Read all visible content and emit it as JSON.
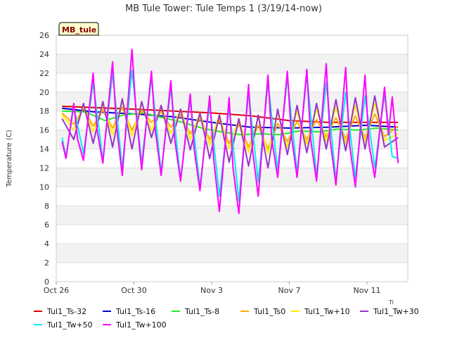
{
  "chart_data": {
    "type": "line",
    "title": "MB Tule Tower: Tule Temps 1 (3/19/14-now)",
    "ylabel": "Temperature (C)",
    "xlabel": "",
    "badge": "MB_tule",
    "corner_mark": "Ti",
    "ylim": [
      0,
      26
    ],
    "yticks": [
      0,
      2,
      4,
      6,
      8,
      10,
      12,
      14,
      16,
      18,
      20,
      22,
      24,
      26
    ],
    "xlim": [
      0,
      18.1
    ],
    "xticks": [
      {
        "value": 0,
        "label": "Oct 26"
      },
      {
        "value": 4,
        "label": "Oct 30"
      },
      {
        "value": 8,
        "label": "Nov 3"
      },
      {
        "value": 12,
        "label": "Nov 7"
      },
      {
        "value": 16,
        "label": "Nov 11"
      }
    ],
    "grid": true,
    "legend_position": "bottom",
    "series": [
      {
        "name": "Tul1_Ts-32",
        "color": "#dd0000",
        "x": [
          0.3,
          4,
          8,
          10,
          12,
          14,
          16,
          17.6
        ],
        "y": [
          18.5,
          18.2,
          17.8,
          17.5,
          17.0,
          16.8,
          16.8,
          16.8
        ]
      },
      {
        "name": "Tul1_Ts-16",
        "color": "#0000cc",
        "x": [
          0.3,
          2,
          4,
          6,
          8,
          10,
          12,
          14,
          16,
          17.6
        ],
        "y": [
          18.3,
          17.9,
          17.7,
          17.4,
          16.8,
          16.3,
          16.2,
          16.3,
          16.5,
          16.3
        ]
      },
      {
        "name": "Tul1_Ts-8",
        "color": "#22ee22",
        "x": [
          0.3,
          1.5,
          2.5,
          3.5,
          4.5,
          5.5,
          6.5,
          7.5,
          8.5,
          9.5,
          10.5,
          11.5,
          12.5,
          13.5,
          14.5,
          15.5,
          16.5,
          17.6
        ],
        "y": [
          18.0,
          17.9,
          17.0,
          17.6,
          17.8,
          17.3,
          16.8,
          16.2,
          15.8,
          15.5,
          15.6,
          15.5,
          15.9,
          15.8,
          16.1,
          16.0,
          16.2,
          16.0
        ]
      },
      {
        "name": "Tul1_Ts0",
        "color": "#ffaa00",
        "x": [
          0.3,
          0.9,
          1.4,
          1.9,
          2.4,
          2.9,
          3.4,
          3.9,
          4.4,
          4.9,
          5.4,
          5.9,
          6.4,
          6.9,
          7.4,
          7.9,
          8.4,
          8.9,
          9.4,
          9.9,
          10.4,
          10.9,
          11.4,
          11.9,
          12.4,
          12.9,
          13.4,
          13.9,
          14.4,
          14.9,
          15.4,
          15.9,
          16.4,
          16.9,
          17.6
        ],
        "y": [
          17.8,
          16.6,
          18.3,
          16.4,
          18.1,
          16.2,
          18.4,
          16.0,
          18.1,
          16.8,
          17.9,
          16.3,
          17.6,
          15.6,
          17.2,
          15.0,
          17.0,
          14.6,
          16.6,
          14.2,
          16.5,
          14.0,
          16.7,
          14.8,
          16.9,
          15.0,
          17.1,
          15.3,
          17.3,
          15.1,
          17.5,
          15.2,
          17.7,
          15.3,
          16.4
        ]
      },
      {
        "name": "Tul1_Tw+10",
        "color": "#ffee00",
        "x": [
          0.3,
          0.9,
          1.4,
          1.9,
          2.4,
          2.9,
          3.4,
          3.9,
          4.4,
          4.9,
          5.4,
          5.9,
          6.4,
          6.9,
          7.4,
          7.9,
          8.4,
          8.9,
          9.4,
          9.9,
          10.4,
          10.9,
          11.4,
          11.9,
          12.4,
          12.9,
          13.4,
          13.9,
          14.4,
          14.9,
          15.4,
          15.9,
          16.4,
          16.9,
          17.6
        ],
        "y": [
          17.6,
          16.0,
          18.5,
          15.8,
          18.7,
          15.5,
          19.0,
          15.4,
          18.8,
          16.0,
          18.5,
          15.6,
          18.2,
          15.0,
          17.8,
          14.4,
          17.6,
          14.0,
          17.2,
          13.6,
          17.4,
          13.5,
          17.8,
          14.2,
          18.0,
          14.5,
          18.2,
          14.8,
          18.4,
          14.6,
          18.6,
          14.8,
          18.8,
          14.9,
          15.6
        ]
      },
      {
        "name": "Tul1_Tw+30",
        "color": "#9933cc",
        "x": [
          0.3,
          0.9,
          1.4,
          1.9,
          2.4,
          2.9,
          3.4,
          3.9,
          4.4,
          4.9,
          5.4,
          5.9,
          6.4,
          6.9,
          7.4,
          7.9,
          8.4,
          8.9,
          9.4,
          9.9,
          10.4,
          10.9,
          11.4,
          11.9,
          12.4,
          12.9,
          13.4,
          13.9,
          14.4,
          14.9,
          15.4,
          15.9,
          16.4,
          16.9,
          17.6
        ],
        "y": [
          17.2,
          15.0,
          18.8,
          14.6,
          19.0,
          14.2,
          19.3,
          14.0,
          19.0,
          15.2,
          18.6,
          14.6,
          18.2,
          13.9,
          17.8,
          13.0,
          17.6,
          12.6,
          17.2,
          12.2,
          17.6,
          12.0,
          18.2,
          13.4,
          18.6,
          13.6,
          18.8,
          14.0,
          19.2,
          13.8,
          19.4,
          14.0,
          19.6,
          14.2,
          15.2
        ]
      },
      {
        "name": "Tul1_Tw+50",
        "color": "#00eeee",
        "x": [
          0.3,
          0.5,
          0.9,
          1.4,
          1.9,
          2.4,
          2.9,
          3.4,
          3.9,
          4.4,
          4.9,
          5.4,
          5.9,
          6.4,
          6.9,
          7.4,
          7.9,
          8.4,
          8.9,
          9.4,
          9.9,
          10.4,
          10.9,
          11.4,
          11.9,
          12.4,
          12.9,
          13.4,
          13.9,
          14.4,
          14.9,
          15.4,
          15.9,
          16.4,
          16.9,
          17.3,
          17.6
        ],
        "y": [
          15.2,
          13.2,
          18.5,
          13.5,
          21.0,
          12.8,
          22.0,
          12.0,
          22.3,
          12.5,
          21.5,
          11.5,
          20.5,
          10.8,
          19.2,
          10.0,
          18.8,
          9.0,
          18.5,
          8.5,
          20.0,
          10.5,
          21.0,
          11.8,
          21.5,
          11.5,
          21.8,
          11.2,
          21.0,
          10.8,
          20.0,
          11.0,
          19.6,
          12.0,
          19.8,
          13.2,
          13.0
        ]
      },
      {
        "name": "Tul1_Tw+100",
        "color": "#ff00ff",
        "x": [
          0.3,
          0.5,
          0.9,
          1.1,
          1.4,
          1.9,
          2.1,
          2.4,
          2.9,
          3.1,
          3.4,
          3.9,
          4.1,
          4.4,
          4.9,
          5.1,
          5.4,
          5.9,
          6.1,
          6.4,
          6.9,
          7.1,
          7.4,
          7.9,
          8.1,
          8.4,
          8.9,
          9.1,
          9.4,
          9.9,
          10.1,
          10.4,
          10.9,
          11.1,
          11.4,
          11.9,
          12.1,
          12.4,
          12.9,
          13.1,
          13.4,
          13.9,
          14.1,
          14.4,
          14.9,
          15.1,
          15.4,
          15.9,
          16.1,
          16.4,
          16.9,
          17.1,
          17.3,
          17.6
        ],
        "y": [
          14.8,
          13.0,
          18.8,
          15.0,
          12.8,
          22.0,
          16.0,
          12.5,
          23.2,
          16.5,
          11.2,
          24.5,
          18.0,
          11.8,
          22.2,
          16.0,
          11.2,
          21.2,
          15.0,
          10.6,
          19.8,
          14.0,
          9.6,
          19.6,
          13.0,
          7.4,
          19.4,
          12.0,
          7.2,
          20.8,
          14.0,
          9.0,
          21.8,
          15.0,
          11.0,
          22.2,
          15.5,
          11.0,
          22.4,
          15.0,
          10.6,
          23.0,
          15.0,
          10.2,
          22.6,
          14.5,
          10.0,
          21.8,
          14.5,
          11.0,
          20.5,
          15.5,
          19.5,
          12.5
        ]
      }
    ]
  }
}
